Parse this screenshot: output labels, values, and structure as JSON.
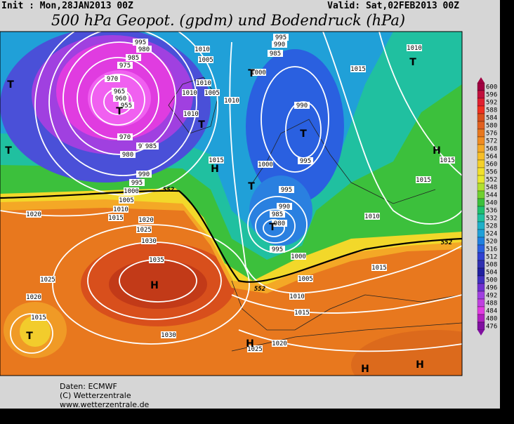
{
  "header": {
    "init": "Init : Mon,28JAN2013 00Z",
    "valid": "Valid: Sat,02FEB2013 00Z",
    "title": "500 hPa Geopot. (gpdm) und Bodendruck (hPa)"
  },
  "map": {
    "isobar_labels": [
      "995",
      "980",
      "985",
      "975",
      "970",
      "965",
      "960",
      "955",
      "970",
      "975",
      "980",
      "985",
      "990",
      "995",
      "1000",
      "1005",
      "1010",
      "1015",
      "1020",
      "1025",
      "1030",
      "1035",
      "1020",
      "1025",
      "1020",
      "1015",
      "1030",
      "1025",
      "1020",
      "1015",
      "1010",
      "1005",
      "1000",
      "995",
      "980",
      "985",
      "990",
      "995",
      "1000",
      "1015",
      "1010",
      "1005",
      "1010",
      "1010",
      "1010",
      "1005",
      "1010",
      "995",
      "990",
      "985",
      "1000",
      "990",
      "995",
      "1015",
      "1010",
      "1015",
      "1015",
      "1015",
      "1010"
    ],
    "contour_552_labels": [
      "552",
      "552",
      "552"
    ],
    "pressure_centers": [
      "T",
      "T",
      "T",
      "T",
      "T",
      "T",
      "T",
      "T",
      "T",
      "T",
      "H",
      "H",
      "H",
      "H",
      "H",
      "H"
    ]
  },
  "colorbar": {
    "ticks": [
      600,
      596,
      592,
      588,
      584,
      580,
      576,
      572,
      568,
      564,
      560,
      556,
      552,
      548,
      544,
      540,
      536,
      532,
      528,
      524,
      520,
      516,
      512,
      508,
      504,
      500,
      496,
      492,
      488,
      484,
      480,
      476
    ]
  },
  "footer": {
    "source": "Daten: ECMWF",
    "copyright": "(C) Wetterzentrale",
    "url": "www.wetterzentrale.de"
  }
}
